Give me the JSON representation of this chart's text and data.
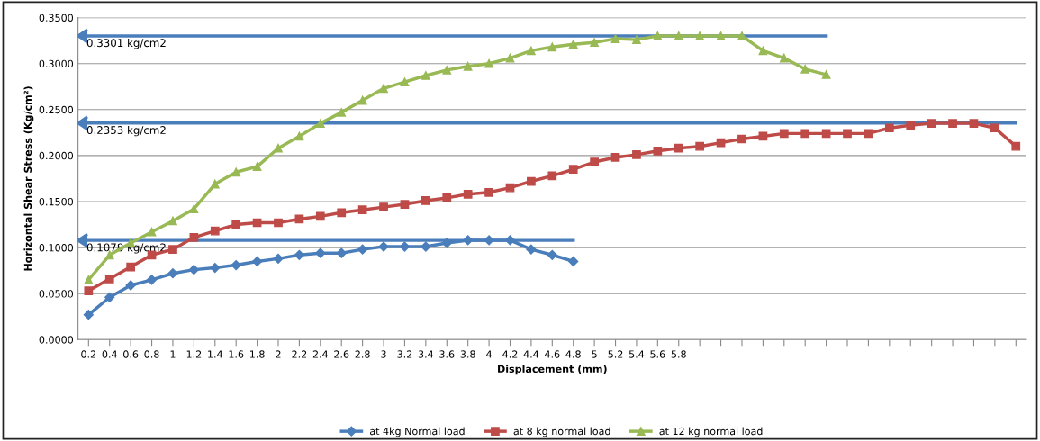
{
  "chart_data": {
    "type": "line",
    "xlabel": "Displacement (mm)",
    "ylabel": "Horizontal Shear Stress (Kg/cm²)",
    "categories": [
      "0.2",
      "0.4",
      "0.6",
      "0.8",
      "1",
      "1.2",
      "1.4",
      "1.6",
      "1.8",
      "2",
      "2.2",
      "2.4",
      "2.6",
      "2.8",
      "3",
      "3.2",
      "3.4",
      "3.6",
      "3.8",
      "4",
      "4.2",
      "4.4",
      "4.6",
      "4.8",
      "5",
      "5.2",
      "5.4",
      "5.6",
      "5.8",
      null,
      null,
      null,
      null,
      null,
      null,
      null,
      null,
      null,
      null,
      null,
      null,
      null,
      null,
      null,
      null
    ],
    "series": [
      {
        "name": "at 4kg Normal load",
        "color": "#4a7ebb",
        "marker": "diamond",
        "values": [
          0.027,
          0.046,
          0.059,
          0.065,
          0.072,
          0.076,
          0.078,
          0.081,
          0.085,
          0.088,
          0.092,
          0.094,
          0.094,
          0.098,
          0.101,
          0.101,
          0.101,
          0.105,
          0.108,
          0.108,
          0.108,
          0.098,
          0.092,
          0.085,
          null,
          null,
          null,
          null,
          null,
          null,
          null,
          null,
          null,
          null,
          null,
          null,
          null,
          null,
          null,
          null,
          null,
          null,
          null,
          null,
          null
        ]
      },
      {
        "name": "at 8 kg normal load",
        "color": "#be4b48",
        "marker": "square",
        "values": [
          0.053,
          0.066,
          0.079,
          0.092,
          0.098,
          0.111,
          0.118,
          0.125,
          0.127,
          0.127,
          0.131,
          0.134,
          0.138,
          0.141,
          0.144,
          0.147,
          0.151,
          0.154,
          0.158,
          0.16,
          0.165,
          0.172,
          0.178,
          0.185,
          0.193,
          0.198,
          0.201,
          0.205,
          0.208,
          0.21,
          0.214,
          0.218,
          0.221,
          0.224,
          0.224,
          0.224,
          0.224,
          0.224,
          0.23,
          0.233,
          0.235,
          0.235,
          0.235,
          0.23,
          0.21
        ]
      },
      {
        "name": "at 12 kg normal load",
        "color": "#98b954",
        "marker": "triangle",
        "values": [
          0.065,
          0.092,
          0.105,
          0.117,
          0.129,
          0.142,
          0.169,
          0.182,
          0.188,
          0.208,
          0.221,
          0.235,
          0.247,
          0.26,
          0.273,
          0.28,
          0.287,
          0.293,
          0.297,
          0.3,
          0.306,
          0.314,
          0.318,
          0.321,
          0.323,
          0.327,
          0.326,
          0.33,
          0.33,
          0.33,
          0.33,
          0.33,
          0.314,
          0.306,
          0.294,
          0.288,
          null,
          null,
          null,
          null,
          null,
          null,
          null,
          null,
          null
        ]
      }
    ],
    "ylim": [
      0,
      0.35
    ],
    "yticks": [
      {
        "value": 0,
        "label": "0.0000"
      },
      {
        "value": 0.05,
        "label": "0.0500"
      },
      {
        "value": 0.1,
        "label": "0.1000"
      },
      {
        "value": 0.15,
        "label": "0.1500"
      },
      {
        "value": 0.2,
        "label": "0.2000"
      },
      {
        "value": 0.25,
        "label": "0.2500"
      },
      {
        "value": 0.3,
        "label": "0.3000"
      },
      {
        "value": 0.35,
        "label": "0.3500"
      }
    ],
    "ref_lines": [
      {
        "axis": "y",
        "value": 0.3301,
        "label": "0.3301 kg/cm2",
        "color": "#4a7ebb"
      },
      {
        "axis": "y",
        "value": 0.2353,
        "label": "0.2353 kg/cm2",
        "color": "#4a7ebb"
      },
      {
        "axis": "y",
        "value": 0.1078,
        "label": "0.1078 kg/cm2",
        "color": "#4a7ebb"
      }
    ],
    "grid": "y",
    "legend": "bottom"
  }
}
